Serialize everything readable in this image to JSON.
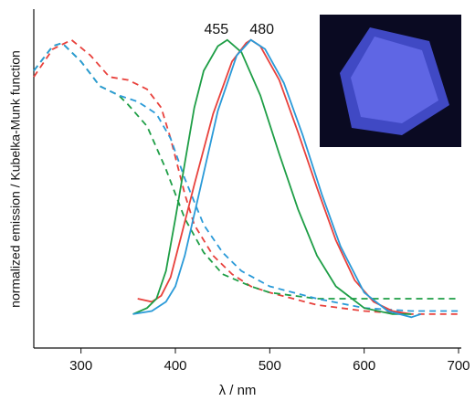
{
  "chart_data": {
    "type": "line",
    "x_label": "λ / nm",
    "y_label": "normalized emission / Kubelka-Munk function",
    "xlim": [
      250,
      700
    ],
    "ylim": [
      0,
      1.1
    ],
    "xticks": [
      300,
      400,
      500,
      600,
      700
    ],
    "annotations": [
      {
        "text": "455",
        "x": 455
      },
      {
        "text": "480",
        "x": 480
      }
    ],
    "series": [
      {
        "color": "#e8413c",
        "dashed": true,
        "x": [
          250,
          270,
          290,
          310,
          330,
          350,
          370,
          385,
          395,
          410,
          420,
          440,
          460,
          480,
          500,
          550,
          600,
          650,
          700
        ],
        "values": [
          0.88,
          0.97,
          1.0,
          0.95,
          0.88,
          0.87,
          0.84,
          0.78,
          0.68,
          0.5,
          0.4,
          0.3,
          0.24,
          0.2,
          0.18,
          0.14,
          0.12,
          0.11,
          0.11
        ]
      },
      {
        "color": "#1e9e46",
        "dashed": true,
        "x": [
          250,
          270,
          280,
          300,
          320,
          340,
          350,
          370,
          390,
          410,
          430,
          450,
          480,
          500,
          550,
          600,
          700
        ],
        "values": [
          0.9,
          0.98,
          0.99,
          0.93,
          0.85,
          0.82,
          0.79,
          0.72,
          0.58,
          0.42,
          0.31,
          0.24,
          0.2,
          0.18,
          0.16,
          0.16,
          0.16
        ]
      },
      {
        "color": "#2a9ad8",
        "dashed": true,
        "x": [
          250,
          270,
          280,
          300,
          320,
          340,
          360,
          380,
          395,
          410,
          430,
          450,
          470,
          500,
          550,
          600,
          650,
          700
        ],
        "values": [
          0.9,
          0.98,
          0.99,
          0.93,
          0.85,
          0.82,
          0.8,
          0.76,
          0.68,
          0.55,
          0.4,
          0.31,
          0.25,
          0.2,
          0.16,
          0.13,
          0.12,
          0.12
        ]
      },
      {
        "color": "#e8413c",
        "dashed": false,
        "x": [
          360,
          375,
          385,
          395,
          405,
          420,
          440,
          460,
          475,
          480,
          490,
          510,
          530,
          550,
          570,
          590,
          610,
          630,
          650
        ],
        "values": [
          0.16,
          0.15,
          0.17,
          0.23,
          0.35,
          0.53,
          0.76,
          0.93,
          0.99,
          1.0,
          0.98,
          0.87,
          0.7,
          0.52,
          0.35,
          0.22,
          0.15,
          0.12,
          0.11
        ]
      },
      {
        "color": "#1e9e46",
        "dashed": false,
        "x": [
          355,
          370,
          380,
          390,
          400,
          410,
          420,
          430,
          445,
          455,
          470,
          490,
          510,
          530,
          550,
          570,
          600,
          630,
          650
        ],
        "values": [
          0.11,
          0.13,
          0.16,
          0.25,
          0.42,
          0.6,
          0.78,
          0.9,
          0.98,
          1.0,
          0.96,
          0.82,
          0.63,
          0.45,
          0.3,
          0.2,
          0.13,
          0.11,
          0.11
        ]
      },
      {
        "color": "#2a9ad8",
        "dashed": false,
        "x": [
          355,
          375,
          390,
          400,
          410,
          425,
          445,
          465,
          480,
          495,
          515,
          535,
          555,
          575,
          600,
          625,
          650,
          660
        ],
        "values": [
          0.11,
          0.12,
          0.15,
          0.2,
          0.3,
          0.5,
          0.77,
          0.95,
          1.0,
          0.97,
          0.86,
          0.69,
          0.5,
          0.33,
          0.18,
          0.12,
          0.1,
          0.11
        ]
      }
    ]
  }
}
